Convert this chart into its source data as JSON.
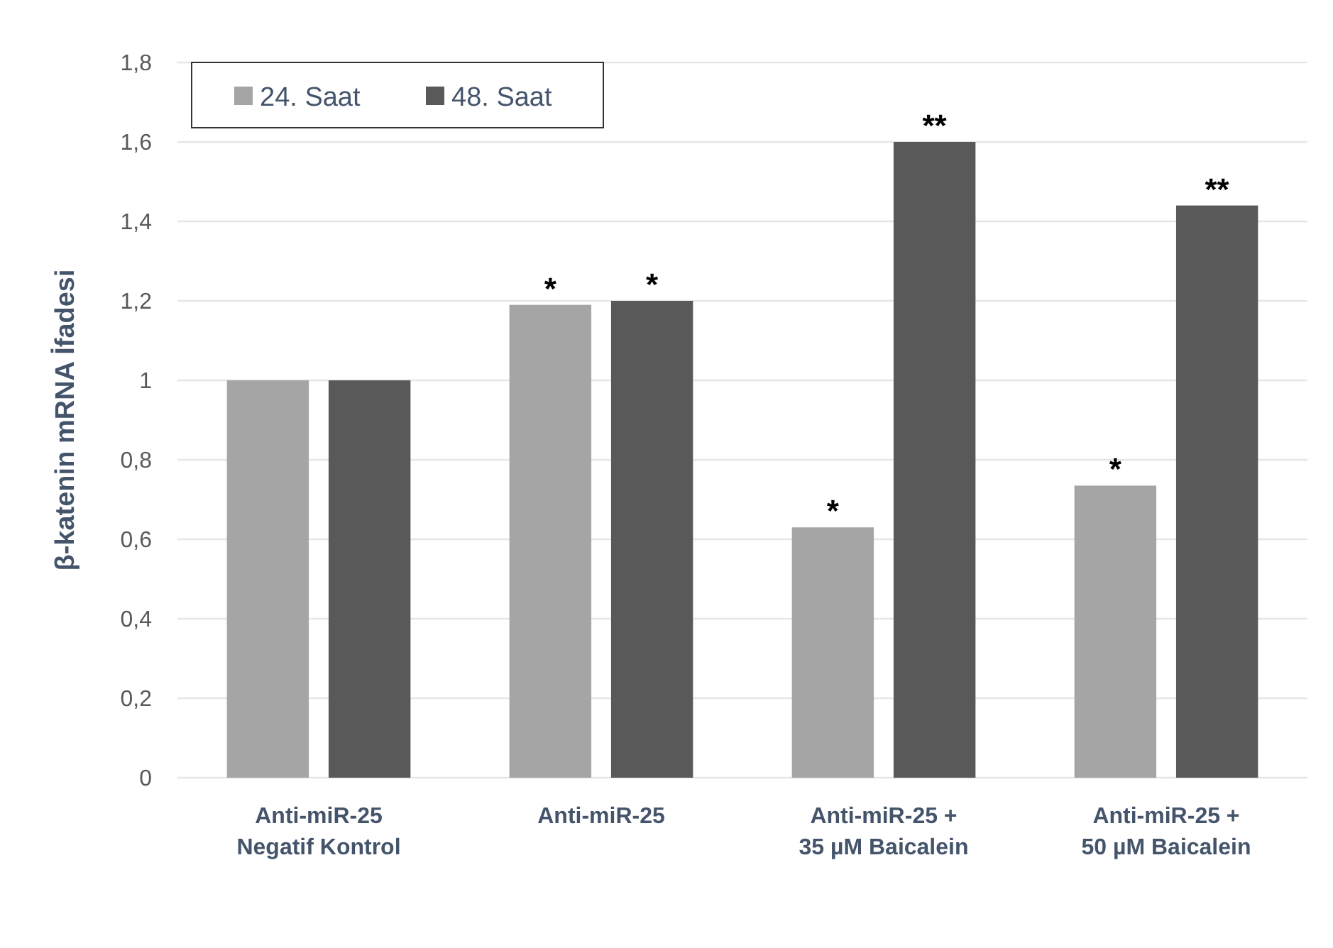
{
  "chart_data": {
    "type": "bar",
    "ylabel": "β-katenin mRNA İfadesi",
    "categories": [
      "Anti-miR-25\nNegatif Kontrol",
      "Anti-miR-25",
      "Anti-miR-25 +\n35 µM Baicalein",
      "Anti-miR-25 +\n50 µM Baicalein"
    ],
    "series": [
      {
        "name": "24. Saat",
        "color": "#a5a5a5",
        "values": [
          1,
          1.19,
          0.63,
          0.735
        ],
        "value_labels": [
          null,
          "*",
          "*",
          "*"
        ]
      },
      {
        "name": "48. Saat",
        "color": "#595959",
        "values": [
          1,
          1.2,
          1.6,
          1.44
        ],
        "value_labels": [
          null,
          "*",
          "**",
          "**"
        ]
      }
    ],
    "ylim": [
      0,
      1.8
    ],
    "yticks": [
      0,
      {
        "value": 0.2,
        "label": "0,2"
      },
      {
        "value": 0.4,
        "label": "0,4"
      },
      {
        "value": 0.6,
        "label": "0,6"
      },
      {
        "value": 0.8,
        "label": "0,8"
      },
      1,
      {
        "value": 1.2,
        "label": "1,2"
      },
      {
        "value": 1.4,
        "label": "1,4"
      },
      {
        "value": 1.6,
        "label": "1,6"
      },
      {
        "value": 1.8,
        "label": "1,8"
      }
    ],
    "grid": "y",
    "legend": "top left"
  }
}
